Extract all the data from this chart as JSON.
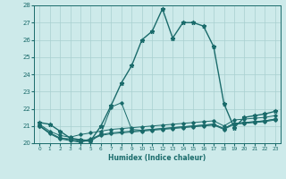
{
  "xlabel": "Humidex (Indice chaleur)",
  "xlim": [
    -0.5,
    23.5
  ],
  "ylim": [
    20,
    28
  ],
  "yticks": [
    20,
    21,
    22,
    23,
    24,
    25,
    26,
    27,
    28
  ],
  "xticks": [
    0,
    1,
    2,
    3,
    4,
    5,
    6,
    7,
    8,
    9,
    10,
    11,
    12,
    13,
    14,
    15,
    16,
    17,
    18,
    19,
    20,
    21,
    22,
    23
  ],
  "background_color": "#cdeaea",
  "line_color": "#1a6b6b",
  "grid_color": "#a8d0d0",
  "lines": [
    {
      "x": [
        0,
        1,
        2,
        3,
        4,
        5,
        6,
        7,
        8,
        9,
        10,
        11,
        12,
        13,
        14,
        15,
        16,
        17,
        18,
        19,
        20,
        21,
        22,
        23
      ],
      "y": [
        21.2,
        21.1,
        20.7,
        20.3,
        20.2,
        20.15,
        21.0,
        22.2,
        23.5,
        24.5,
        26.0,
        26.5,
        27.8,
        26.1,
        27.0,
        27.0,
        26.8,
        25.6,
        22.3,
        20.9,
        21.5,
        21.6,
        21.7,
        21.85
      ],
      "marker": "*",
      "markersize": 3.5,
      "linewidth": 1.0
    },
    {
      "x": [
        0,
        1,
        2,
        3,
        4,
        5,
        6,
        7,
        8,
        9,
        10,
        11,
        12,
        13,
        14,
        15,
        16,
        17,
        18,
        19,
        20,
        21,
        22,
        23
      ],
      "y": [
        21.1,
        20.7,
        20.45,
        20.35,
        20.5,
        20.6,
        20.7,
        20.8,
        20.85,
        20.9,
        20.95,
        21.0,
        21.05,
        21.1,
        21.15,
        21.2,
        21.25,
        21.3,
        21.0,
        21.35,
        21.4,
        21.45,
        21.5,
        21.6
      ],
      "marker": "D",
      "markersize": 1.8,
      "linewidth": 0.7
    },
    {
      "x": [
        0,
        1,
        2,
        3,
        4,
        5,
        6,
        7,
        8,
        9,
        10,
        11,
        12,
        13,
        14,
        15,
        16,
        17,
        18,
        19,
        20,
        21,
        22,
        23
      ],
      "y": [
        21.0,
        20.6,
        20.3,
        20.2,
        20.1,
        20.25,
        20.5,
        20.6,
        20.65,
        20.7,
        20.75,
        20.8,
        20.85,
        20.9,
        20.95,
        21.0,
        21.05,
        21.1,
        20.85,
        21.15,
        21.2,
        21.25,
        21.3,
        21.4
      ],
      "marker": "D",
      "markersize": 1.8,
      "linewidth": 0.7
    },
    {
      "x": [
        0,
        1,
        2,
        3,
        4,
        5,
        6,
        7,
        8,
        9,
        10,
        11,
        12,
        13,
        14,
        15,
        16,
        17,
        18,
        19,
        20,
        21,
        22,
        23
      ],
      "y": [
        21.0,
        20.55,
        20.25,
        20.15,
        20.05,
        20.2,
        20.45,
        20.55,
        20.6,
        20.65,
        20.7,
        20.75,
        20.8,
        20.85,
        20.9,
        20.95,
        21.0,
        21.05,
        20.8,
        21.1,
        21.15,
        21.2,
        21.25,
        21.35
      ],
      "marker": "D",
      "markersize": 1.8,
      "linewidth": 0.7
    },
    {
      "x": [
        0,
        1,
        2,
        3,
        4,
        5,
        6,
        7,
        8,
        9,
        10,
        11,
        12,
        13,
        14,
        15,
        16,
        17,
        18,
        19,
        20,
        21,
        22,
        23
      ],
      "y": [
        21.05,
        20.6,
        20.3,
        20.25,
        20.15,
        20.1,
        20.55,
        22.1,
        22.35,
        20.8,
        20.75,
        20.8,
        20.85,
        20.9,
        20.95,
        21.0,
        21.05,
        21.1,
        20.85,
        21.15,
        21.2,
        21.25,
        21.3,
        21.4
      ],
      "marker": "D",
      "markersize": 1.8,
      "linewidth": 0.7
    }
  ]
}
